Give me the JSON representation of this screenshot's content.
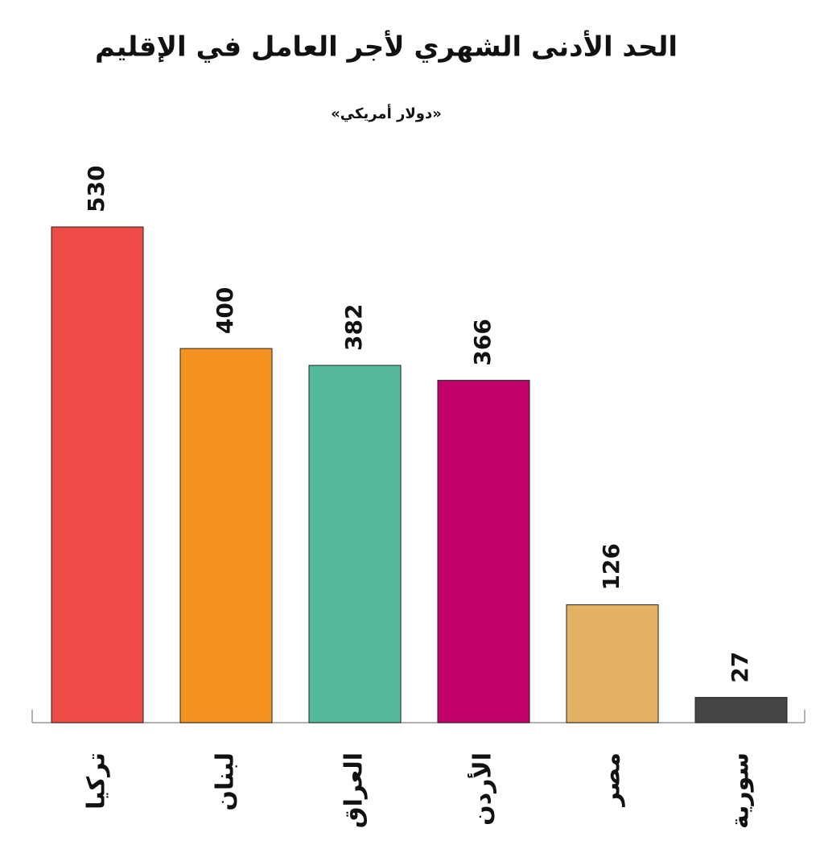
{
  "chart_data": {
    "type": "bar",
    "title": "الحد الأدنى الشهري لأجر العامل في الإقليم",
    "subtitle": "«دولار أمريكي»",
    "categories": [
      "تركيا",
      "لبنان",
      "العراق",
      "الأردن",
      "مصر",
      "سورية"
    ],
    "values": [
      530,
      400,
      382,
      366,
      126,
      27
    ],
    "colors": [
      "#ee4b46",
      "#f59321",
      "#55b99b",
      "#c0006b",
      "#e3b264",
      "#444444"
    ]
  }
}
